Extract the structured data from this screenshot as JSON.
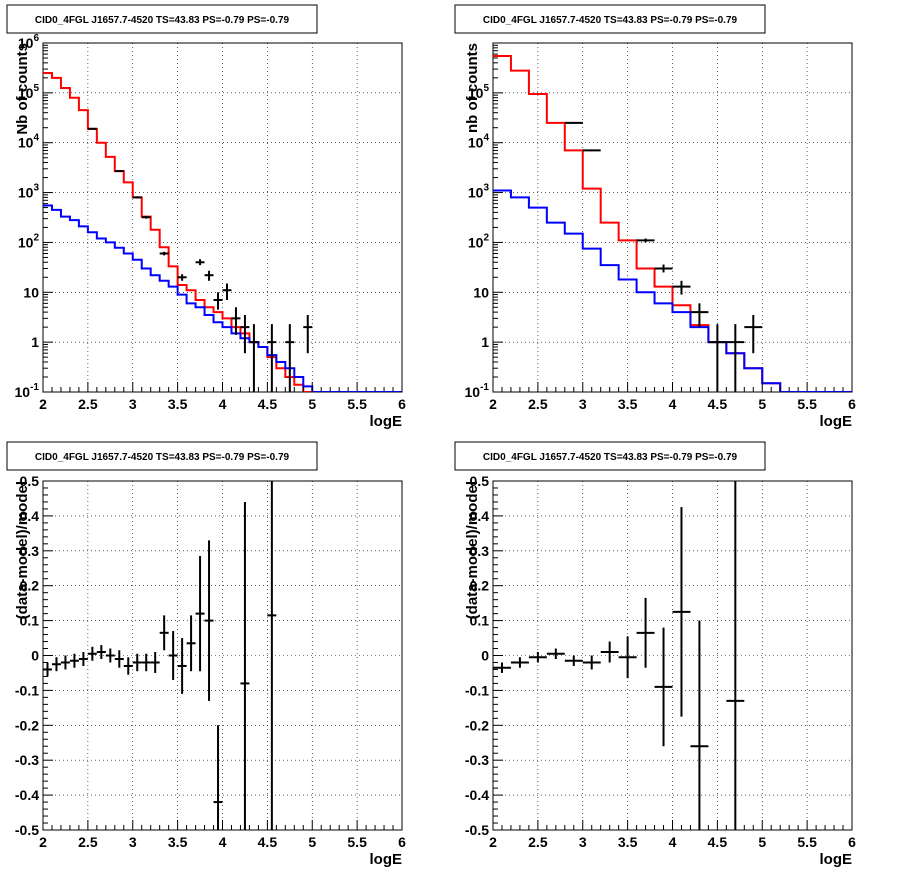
{
  "chart_data": [
    {
      "type": "line",
      "title": "CID0_4FGL J1657.7-4520 TS=43.83 PS=-0.79 PS=-0.79",
      "xlabel": "logE",
      "ylabel": "Nb of counts",
      "xlim": [
        2,
        6
      ],
      "ylim": [
        0.1,
        1000000
      ],
      "yscale": "log",
      "grid": true,
      "xticks": [
        "2",
        "2.5",
        "3",
        "3.5",
        "4",
        "4.5",
        "5",
        "5.5",
        "6"
      ],
      "yticks": [
        "10^-1",
        "1",
        "10",
        "10^2",
        "10^3",
        "10^4",
        "10^5",
        "10^6"
      ],
      "bin_edges": [
        2.0,
        2.1,
        2.2,
        2.3,
        2.4,
        2.5,
        2.6,
        2.7,
        2.8,
        2.9,
        3.0,
        3.1,
        3.2,
        3.3,
        3.4,
        3.5,
        3.6,
        3.7,
        3.8,
        3.9,
        4.0,
        4.1,
        4.2,
        4.3,
        4.4,
        4.5,
        4.6,
        4.7,
        4.8,
        4.9,
        5.0,
        5.1,
        5.2,
        5.3,
        5.4,
        5.5,
        5.6,
        5.7,
        5.8,
        5.9,
        6.0
      ],
      "series": [
        {
          "role": "model_total",
          "color": "#ff0000",
          "values": [
            250000,
            200000,
            125000,
            80000,
            45000,
            19000,
            10000,
            5200,
            2700,
            1600,
            800,
            330,
            180,
            80,
            33,
            14,
            11,
            7,
            5,
            4,
            3.0,
            2.0,
            1.5,
            1.0,
            0.8,
            0.5,
            0.3,
            0.2,
            0.14,
            0.1,
            0.1,
            0.1,
            0.1,
            0.1,
            0.1,
            0.1,
            0.1,
            0.1,
            0.1,
            0.1
          ]
        },
        {
          "role": "model_component",
          "color": "#0000ff",
          "values": [
            550,
            450,
            330,
            280,
            210,
            160,
            120,
            100,
            78,
            60,
            45,
            30,
            22,
            17,
            13,
            9,
            6,
            5,
            3.5,
            2.5,
            2.0,
            1.5,
            1.2,
            1.0,
            0.8,
            0.55,
            0.4,
            0.3,
            0.2,
            0.13,
            0.1,
            0.1,
            0.1,
            0.1,
            0.1,
            0.1,
            0.1,
            0.1,
            0.1,
            0.1
          ]
        },
        {
          "role": "data",
          "color": "#000000",
          "points": [
            {
              "x": 2.55,
              "y": 19000,
              "err": [
                19000,
                19000
              ]
            },
            {
              "x": 2.85,
              "y": 2700,
              "err": [
                2600,
                2800
              ]
            },
            {
              "x": 3.05,
              "y": 800,
              "err": [
                760,
                840
              ]
            },
            {
              "x": 3.15,
              "y": 320,
              "err": [
                300,
                340
              ]
            },
            {
              "x": 3.35,
              "y": 60,
              "err": [
                55,
                65
              ]
            },
            {
              "x": 3.55,
              "y": 20,
              "err": [
                17,
                23
              ]
            },
            {
              "x": 3.75,
              "y": 40,
              "err": [
                35,
                46
              ]
            },
            {
              "x": 3.85,
              "y": 22,
              "err": [
                17,
                27
              ]
            },
            {
              "x": 3.95,
              "y": 7,
              "err": [
                4.5,
                10
              ]
            },
            {
              "x": 4.05,
              "y": 11,
              "err": [
                7,
                15
              ]
            },
            {
              "x": 4.15,
              "y": 3,
              "err": [
                1.4,
                5
              ]
            },
            {
              "x": 4.25,
              "y": 2,
              "err": [
                0.6,
                3.5
              ]
            },
            {
              "x": 4.35,
              "y": 1,
              "err": [
                0.1,
                2.3
              ]
            },
            {
              "x": 4.55,
              "y": 1,
              "err": [
                0.1,
                2.3
              ]
            },
            {
              "x": 4.75,
              "y": 1,
              "err": [
                0.1,
                2.3
              ]
            },
            {
              "x": 4.95,
              "y": 2,
              "err": [
                0.6,
                3.5
              ]
            }
          ]
        }
      ]
    },
    {
      "type": "line",
      "title": "CID0_4FGL J1657.7-4520 TS=43.83 PS=-0.79 PS=-0.79",
      "xlabel": "logE",
      "ylabel": "nb of counts",
      "xlim": [
        2,
        6
      ],
      "ylim": [
        0.1,
        1000000
      ],
      "yscale": "log",
      "grid": true,
      "xticks": [
        "2",
        "2.5",
        "3",
        "3.5",
        "4",
        "4.5",
        "5",
        "5.5",
        "6"
      ],
      "yticks": [
        "10^-1",
        "1",
        "10",
        "10^2",
        "10^3",
        "10^4",
        "10^5"
      ],
      "bin_edges": [
        2.0,
        2.2,
        2.4,
        2.6,
        2.8,
        3.0,
        3.2,
        3.4,
        3.6,
        3.8,
        4.0,
        4.2,
        4.4,
        4.6,
        4.8,
        5.0,
        5.2,
        5.4,
        5.6,
        5.8,
        6.0
      ],
      "series": [
        {
          "role": "model_total",
          "color": "#ff0000",
          "values": [
            550000,
            280000,
            95000,
            25000,
            7000,
            1200,
            250,
            110,
            30,
            13,
            5.5,
            2.2,
            1.0,
            0.6,
            0.3,
            0.15,
            0.1,
            0.1,
            0.1,
            0.1
          ]
        },
        {
          "role": "model_component",
          "color": "#0000ff",
          "values": [
            1100,
            800,
            500,
            250,
            150,
            75,
            35,
            18,
            10,
            6,
            4,
            2.0,
            1.0,
            0.6,
            0.3,
            0.15,
            0.1,
            0.1,
            0.1,
            0.1
          ]
        },
        {
          "role": "data",
          "color": "#000000",
          "points": [
            {
              "x": 2.9,
              "y": 25000,
              "err": [
                24000,
                26000
              ]
            },
            {
              "x": 3.1,
              "y": 7000,
              "err": [
                6700,
                7300
              ]
            },
            {
              "x": 3.7,
              "y": 110,
              "err": [
                100,
                120
              ]
            },
            {
              "x": 3.9,
              "y": 30,
              "err": [
                25,
                36
              ]
            },
            {
              "x": 4.1,
              "y": 13,
              "err": [
                9,
                17
              ]
            },
            {
              "x": 4.3,
              "y": 4,
              "err": [
                2,
                6
              ]
            },
            {
              "x": 4.5,
              "y": 1,
              "err": [
                0.1,
                2.3
              ]
            },
            {
              "x": 4.7,
              "y": 1,
              "err": [
                0.1,
                2.3
              ]
            },
            {
              "x": 4.9,
              "y": 2,
              "err": [
                0.6,
                3.5
              ]
            }
          ]
        }
      ]
    },
    {
      "type": "scatter",
      "title": "CID0_4FGL J1657.7-4520 TS=43.83 PS=-0.79 PS=-0.79",
      "xlabel": "logE",
      "ylabel": "(data-model)/model",
      "xlim": [
        2,
        6
      ],
      "ylim": [
        -0.5,
        0.5
      ],
      "grid": true,
      "xticks": [
        "2",
        "2.5",
        "3",
        "3.5",
        "4",
        "4.5",
        "5",
        "5.5",
        "6"
      ],
      "yticks": [
        "-0.5",
        "-0.4",
        "-0.3",
        "-0.2",
        "-0.1",
        "0",
        "0.1",
        "0.2",
        "0.3",
        "0.4",
        "0.5"
      ],
      "points": [
        {
          "x": 2.05,
          "y": -0.04,
          "xerr": 0.05,
          "yerr": 0.02
        },
        {
          "x": 2.15,
          "y": -0.025,
          "xerr": 0.05,
          "yerr": 0.02
        },
        {
          "x": 2.25,
          "y": -0.02,
          "xerr": 0.05,
          "yerr": 0.02
        },
        {
          "x": 2.35,
          "y": -0.015,
          "xerr": 0.05,
          "yerr": 0.02
        },
        {
          "x": 2.45,
          "y": -0.01,
          "xerr": 0.05,
          "yerr": 0.02
        },
        {
          "x": 2.55,
          "y": 0.005,
          "xerr": 0.05,
          "yerr": 0.02
        },
        {
          "x": 2.65,
          "y": 0.01,
          "xerr": 0.05,
          "yerr": 0.02
        },
        {
          "x": 2.75,
          "y": 0.0,
          "xerr": 0.05,
          "yerr": 0.02
        },
        {
          "x": 2.85,
          "y": -0.01,
          "xerr": 0.05,
          "yerr": 0.025
        },
        {
          "x": 2.95,
          "y": -0.03,
          "xerr": 0.05,
          "yerr": 0.025
        },
        {
          "x": 3.05,
          "y": -0.02,
          "xerr": 0.05,
          "yerr": 0.025
        },
        {
          "x": 3.15,
          "y": -0.02,
          "xerr": 0.05,
          "yerr": 0.025
        },
        {
          "x": 3.25,
          "y": -0.02,
          "xerr": 0.05,
          "yerr": 0.03
        },
        {
          "x": 3.35,
          "y": 0.065,
          "xerr": 0.05,
          "yerr": 0.05
        },
        {
          "x": 3.45,
          "y": 0.0,
          "xerr": 0.05,
          "yerr": 0.07
        },
        {
          "x": 3.55,
          "y": -0.03,
          "xerr": 0.05,
          "yerr": 0.08
        },
        {
          "x": 3.65,
          "y": 0.035,
          "xerr": 0.05,
          "yerr": 0.08
        },
        {
          "x": 3.75,
          "y": 0.12,
          "xerr": 0.05,
          "yerr": 0.165
        },
        {
          "x": 3.85,
          "y": 0.1,
          "xerr": 0.05,
          "yerr": 0.23
        },
        {
          "x": 3.95,
          "y": -0.42,
          "xerr": 0.05,
          "yerr": [
            0.08,
            0.22
          ]
        },
        {
          "x": 4.25,
          "y": -0.08,
          "xerr": 0.05,
          "yerr": [
            0.42,
            0.52
          ]
        },
        {
          "x": 4.55,
          "y": 0.115,
          "xerr": 0.05,
          "yerr": [
            0.615,
            0.385
          ]
        }
      ]
    },
    {
      "type": "scatter",
      "title": "CID0_4FGL J1657.7-4520 TS=43.83 PS=-0.79 PS=-0.79",
      "xlabel": "logE",
      "ylabel": "(data-model)/model",
      "xlim": [
        2,
        6
      ],
      "ylim": [
        -0.5,
        0.5
      ],
      "grid": true,
      "xticks": [
        "2",
        "2.5",
        "3",
        "3.5",
        "4",
        "4.5",
        "5",
        "5.5",
        "6"
      ],
      "yticks": [
        "-0.5",
        "-0.4",
        "-0.3",
        "-0.2",
        "-0.1",
        "0",
        "0.1",
        "0.2",
        "0.3",
        "0.4",
        "0.5"
      ],
      "points": [
        {
          "x": 2.1,
          "y": -0.035,
          "xerr": 0.1,
          "yerr": 0.015
        },
        {
          "x": 2.3,
          "y": -0.02,
          "xerr": 0.1,
          "yerr": 0.015
        },
        {
          "x": 2.5,
          "y": -0.005,
          "xerr": 0.1,
          "yerr": 0.015
        },
        {
          "x": 2.7,
          "y": 0.005,
          "xerr": 0.1,
          "yerr": 0.015
        },
        {
          "x": 2.9,
          "y": -0.015,
          "xerr": 0.1,
          "yerr": 0.015
        },
        {
          "x": 3.1,
          "y": -0.02,
          "xerr": 0.1,
          "yerr": 0.02
        },
        {
          "x": 3.3,
          "y": 0.01,
          "xerr": 0.1,
          "yerr": 0.03
        },
        {
          "x": 3.5,
          "y": -0.005,
          "xerr": 0.1,
          "yerr": 0.06
        },
        {
          "x": 3.7,
          "y": 0.065,
          "xerr": 0.1,
          "yerr": 0.1
        },
        {
          "x": 3.9,
          "y": -0.09,
          "xerr": 0.1,
          "yerr": 0.17
        },
        {
          "x": 4.1,
          "y": 0.125,
          "xerr": 0.1,
          "yerr": 0.3
        },
        {
          "x": 4.3,
          "y": -0.26,
          "xerr": 0.1,
          "yerr": [
            0.24,
            0.36
          ]
        },
        {
          "x": 4.7,
          "y": -0.13,
          "xerr": 0.1,
          "yerr": [
            0.37,
            0.63
          ]
        }
      ]
    }
  ]
}
